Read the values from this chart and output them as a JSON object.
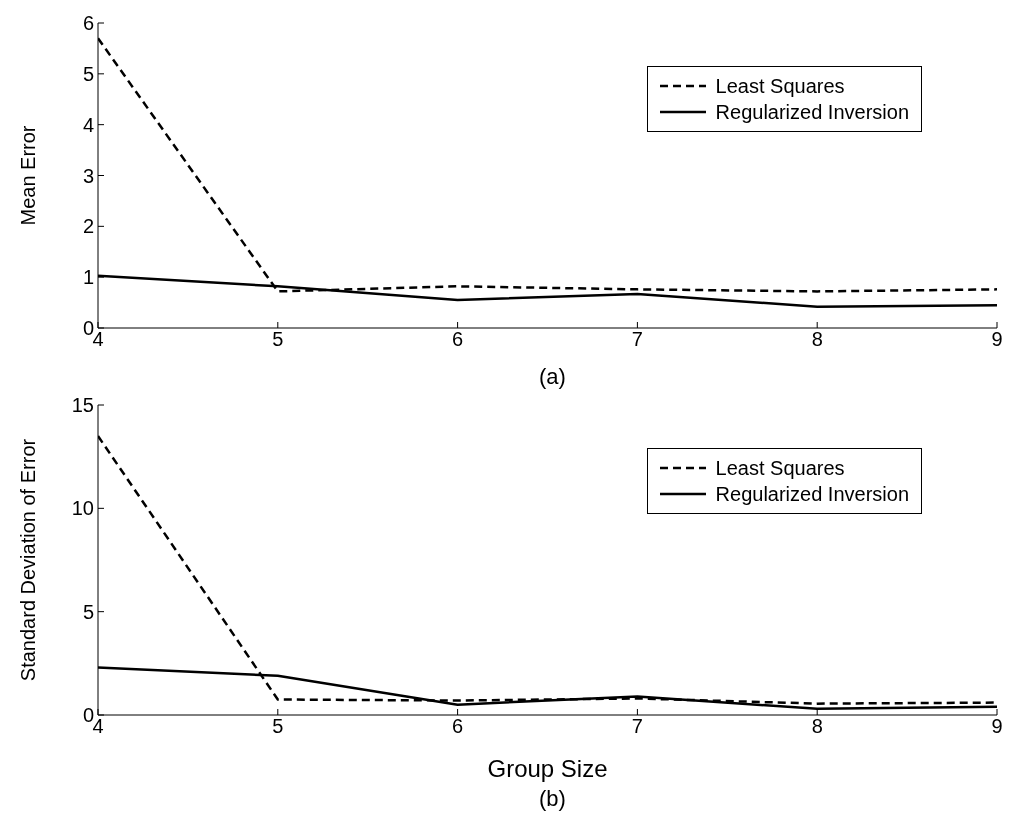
{
  "chart_data": [
    {
      "type": "line",
      "x": [
        4,
        5,
        6,
        7,
        8,
        9
      ],
      "ylabel": "Mean Error",
      "xlim": [
        4,
        9
      ],
      "xticks": [
        4,
        5,
        6,
        7,
        8,
        9
      ],
      "ylim": [
        0,
        6
      ],
      "yticks": [
        0,
        1,
        2,
        3,
        4,
        5,
        6
      ],
      "legend": "top right",
      "grid": false,
      "annotations": [
        "(a)"
      ],
      "series": [
        {
          "name": "Least Squares",
          "color": "#000000",
          "line_style": "dashed",
          "values": [
            5.7,
            0.72,
            0.82,
            0.76,
            0.72,
            0.76
          ]
        },
        {
          "name": "Regularized Inversion",
          "color": "#000000",
          "line_style": "solid",
          "values": [
            1.03,
            0.82,
            0.55,
            0.67,
            0.42,
            0.45
          ]
        }
      ]
    },
    {
      "type": "line",
      "x": [
        4,
        5,
        6,
        7,
        8,
        9
      ],
      "xlabel": "Group Size",
      "ylabel": "Standard Deviation of Error",
      "xlim": [
        4,
        9
      ],
      "xticks": [
        4,
        5,
        6,
        7,
        8,
        9
      ],
      "ylim": [
        0,
        15
      ],
      "yticks": [
        0,
        5,
        10,
        15
      ],
      "legend": "top right",
      "grid": false,
      "annotations": [
        "(b)"
      ],
      "series": [
        {
          "name": "Least Squares",
          "color": "#000000",
          "line_style": "dashed",
          "values": [
            13.5,
            0.75,
            0.7,
            0.8,
            0.55,
            0.6
          ]
        },
        {
          "name": "Regularized Inversion",
          "color": "#000000",
          "line_style": "solid",
          "values": [
            2.3,
            1.9,
            0.5,
            0.9,
            0.3,
            0.4
          ]
        }
      ]
    }
  ]
}
